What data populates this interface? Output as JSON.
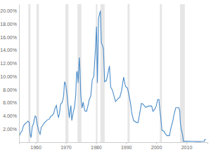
{
  "chart_data": {
    "type": "line",
    "color": "#4a8cc9",
    "grid": false,
    "xlim": [
      1954.5,
      2017
    ],
    "xticks": [
      1960,
      1970,
      1980,
      1990,
      2000,
      2010
    ],
    "ylim": [
      0,
      21
    ],
    "yticks": [
      {
        "value": 2,
        "label": "2.00%"
      },
      {
        "value": 4,
        "label": "4.00%"
      },
      {
        "value": 6,
        "label": "6.00%"
      },
      {
        "value": 8,
        "label": "8.00%"
      },
      {
        "value": 10,
        "label": "10.00%"
      },
      {
        "value": 12,
        "label": "12.00%"
      },
      {
        "value": 14,
        "label": "14.00%"
      },
      {
        "value": 16,
        "label": "16.00%"
      },
      {
        "value": 18,
        "label": "18.00%"
      },
      {
        "value": 20,
        "label": "20.00%"
      }
    ],
    "recessions": [
      [
        1957.6,
        1958.3
      ],
      [
        1960.3,
        1961.1
      ],
      [
        1969.9,
        1970.9
      ],
      [
        1973.9,
        1975.2
      ],
      [
        1980.0,
        1980.5
      ],
      [
        1981.5,
        1982.9
      ],
      [
        1990.5,
        1991.2
      ],
      [
        2001.2,
        2001.9
      ],
      [
        2007.9,
        2009.5
      ]
    ],
    "x": [
      1954.5,
      1955,
      1955.5,
      1956,
      1956.5,
      1957,
      1957.5,
      1957.9,
      1958.2,
      1958.5,
      1958.9,
      1959.3,
      1959.6,
      1959.9,
      1960.2,
      1960.5,
      1960.8,
      1961.2,
      1961.5,
      1961.9,
      1962.3,
      1962.8,
      1963.5,
      1963.9,
      1964.5,
      1965,
      1965.6,
      1966,
      1966.5,
      1966.9,
      1967.3,
      1967.6,
      1967.9,
      1968.3,
      1968.8,
      1969.3,
      1969.6,
      1969.9,
      1970.3,
      1970.6,
      1970.9,
      1971.2,
      1971.5,
      1971.7,
      1972.0,
      1972.5,
      1972.9,
      1973.3,
      1973.6,
      1973.8,
      1974.1,
      1974.5,
      1974.7,
      1975.0,
      1975.4,
      1975.8,
      1976.3,
      1976.9,
      1977.3,
      1977.8,
      1978.3,
      1978.8,
      1979.3,
      1979.8,
      1980.2,
      1980.5,
      1980.9,
      1981.0,
      1981.5,
      1981.8,
      1982.2,
      1982.5,
      1982.9,
      1983.5,
      1984.5,
      1984.9,
      1985.5,
      1986.5,
      1987.5,
      1987.9,
      1988.5,
      1989.2,
      1989.8,
      1990.5,
      1990.9,
      1991.5,
      1991.9,
      1992.5,
      1993.5,
      1994.0,
      1994.5,
      1995.1,
      1995.6,
      1996.5,
      1997.5,
      1998.5,
      1998.9,
      1999.5,
      2000.0,
      2000.5,
      2000.9,
      2001.2,
      2001.5,
      2001.9,
      2002.5,
      2003.0,
      2003.6,
      2004.4,
      2004.9,
      2005.5,
      2005.9,
      2006.5,
      2007.5,
      2007.8,
      2008.0,
      2008.3,
      2008.8,
      2009.0,
      2010,
      2012,
      2014,
      2015.9,
      2016.0,
      2016.5
    ],
    "values": [
      0.8,
      1.4,
      1.7,
      2.5,
      2.8,
      3.0,
      3.2,
      3.0,
      1.2,
      0.7,
      2.4,
      2.8,
      3.5,
      4.0,
      3.8,
      2.8,
      2.2,
      1.5,
      1.2,
      2.3,
      2.5,
      2.9,
      3.2,
      3.4,
      3.5,
      3.9,
      4.1,
      4.4,
      5.2,
      5.6,
      4.3,
      3.8,
      4.3,
      5.8,
      6.0,
      7.0,
      9.2,
      8.9,
      7.8,
      6.5,
      5.0,
      3.7,
      5.0,
      5.6,
      3.3,
      4.6,
      5.3,
      7.1,
      10.5,
      10.8,
      9.0,
      12.9,
      11.3,
      7.1,
      5.2,
      6.1,
      4.8,
      4.7,
      5.4,
      6.5,
      7.0,
      9.5,
      10.0,
      13.8,
      17.6,
      9.0,
      18.9,
      19.1,
      20.0,
      15.1,
      14.7,
      14.2,
      9.2,
      9.4,
      11.6,
      8.4,
      7.9,
      6.2,
      6.7,
      6.8,
      7.8,
      9.9,
      8.5,
      8.2,
      7.3,
      5.9,
      4.4,
      3.3,
      3.0,
      3.0,
      4.3,
      5.9,
      5.8,
      5.3,
      5.5,
      5.5,
      4.7,
      5.0,
      5.5,
      6.5,
      6.5,
      5.0,
      3.8,
      1.8,
      1.7,
      1.3,
      1.0,
      1.0,
      2.2,
      3.2,
      4.2,
      5.25,
      5.25,
      4.8,
      3.0,
      2.0,
      1.0,
      0.15,
      0.15,
      0.14,
      0.09,
      0.13,
      0.36,
      0.4
    ]
  }
}
